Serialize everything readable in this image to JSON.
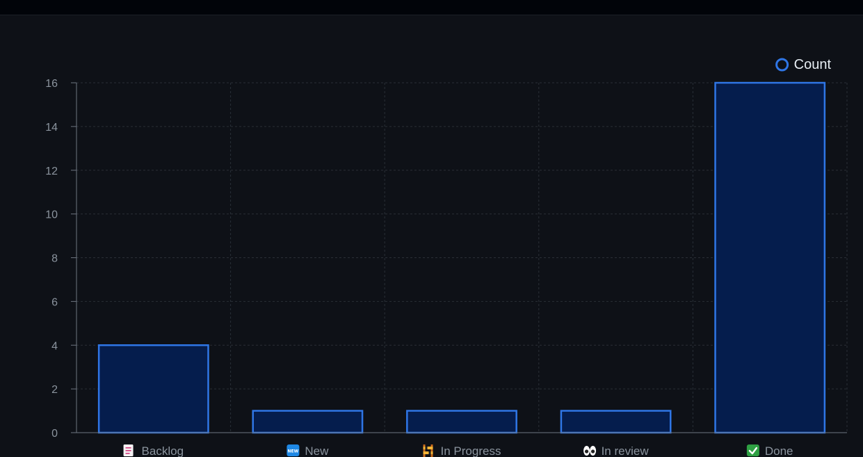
{
  "colors": {
    "background": "#0e1117",
    "topbar": "#010409",
    "grid": "#2a2f37",
    "axis": "#6e7681",
    "tick_text": "#8b949e",
    "bar_fill": "#051d4d",
    "bar_stroke": "#2f76e6",
    "legend_text": "#e6edf3"
  },
  "chart_data": {
    "type": "bar",
    "categories": [
      "Backlog",
      "New",
      "In Progress",
      "In review",
      "Done"
    ],
    "category_icons": [
      "memo-icon",
      "new-badge-icon",
      "construction-icon",
      "eyes-icon",
      "check-mark-icon"
    ],
    "series": [
      {
        "name": "Count",
        "values": [
          4,
          1,
          1,
          1,
          16
        ]
      }
    ],
    "ylim": [
      0,
      16
    ],
    "yticks": [
      0,
      2,
      4,
      6,
      8,
      10,
      12,
      14,
      16
    ],
    "grid": true,
    "legend_position": "top-right"
  }
}
